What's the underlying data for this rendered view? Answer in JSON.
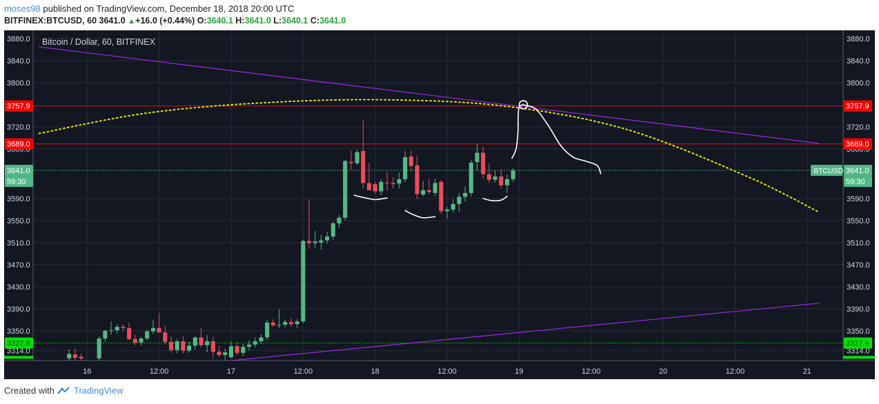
{
  "header": {
    "username": "moses98",
    "published_text": "published on TradingView.com, December 18, 2018 20:00 UTC"
  },
  "ticker": {
    "symbol": "BITFINEX:BTCUSD, 60",
    "price": "3641.0",
    "change": "+16.0 (+0.44%)",
    "open_label": "O:",
    "open": "3640.1",
    "high_label": "H:",
    "high": "3641.0",
    "low_label": "L:",
    "low": "3640.1",
    "close_label": "C:",
    "close": "3641.0",
    "change_icon": "triangle-up-icon"
  },
  "footer": {
    "created_with": "Created with",
    "brand": "TradingView",
    "logo_icon": "tradingview-logo-icon"
  },
  "colors": {
    "background": "#131722",
    "grid": "#2a2e39",
    "up": "#53b987",
    "down": "#eb4d5c",
    "resistance": "#ff0000",
    "support": "#00e400",
    "trendline": "#9c27e0",
    "arc": "#e6e600",
    "drawing": "#ffffff",
    "last_price": "#53b987"
  },
  "chart_data": {
    "type": "candlestick",
    "title": "Bitcoin / Dollar, 60, BITFINEX",
    "symbol_tag": "BTCUSD",
    "y_range": [
      3296,
      3895
    ],
    "y_ticks": [
      "3880.0",
      "3840.0",
      "3800.0",
      "3720.0",
      "3680.0",
      "3590.0",
      "3550.0",
      "3510.0",
      "3470.0",
      "3430.0",
      "3390.0",
      "3350.0",
      "3314.0"
    ],
    "y_tick_values": [
      3880,
      3840,
      3800,
      3720,
      3680,
      3590,
      3550,
      3510,
      3470,
      3430,
      3390,
      3350,
      3314
    ],
    "x_range_hours": [
      -9,
      126
    ],
    "x_ticks": [
      {
        "label": "16",
        "hour": 0
      },
      {
        "label": "12:00",
        "hour": 12
      },
      {
        "label": "17",
        "hour": 24
      },
      {
        "label": "12:00",
        "hour": 36
      },
      {
        "label": "18",
        "hour": 48
      },
      {
        "label": "12:00",
        "hour": 60
      },
      {
        "label": "19",
        "hour": 72
      },
      {
        "label": "12:00",
        "hour": 84
      },
      {
        "label": "20",
        "hour": 96
      },
      {
        "label": "12:00",
        "hour": 108
      },
      {
        "label": "21",
        "hour": 120
      }
    ],
    "price_labels": [
      {
        "text": "3757.9",
        "value": 3757.9,
        "kind": "resistance"
      },
      {
        "text": "3689.0",
        "value": 3689.0,
        "kind": "resistance"
      },
      {
        "text": "3641.0",
        "value": 3641.0,
        "kind": "last"
      },
      {
        "text": "59:30",
        "value": 3621.0,
        "kind": "countdown"
      },
      {
        "text": "3327.9",
        "value": 3327.9,
        "kind": "support"
      }
    ],
    "horizontal_lines": [
      {
        "value": 3757.9,
        "kind": "resistance"
      },
      {
        "value": 3689.0,
        "kind": "resistance"
      },
      {
        "value": 3641.0,
        "kind": "last"
      },
      {
        "value": 3327.9,
        "kind": "support"
      },
      {
        "value": 3302.0,
        "kind": "support_edge"
      }
    ],
    "trendlines": [
      {
        "from": {
          "hour": -8,
          "price": 3865
        },
        "to": {
          "hour": 122,
          "price": 3690
        }
      },
      {
        "from": {
          "hour": 24,
          "price": 3296
        },
        "to": {
          "hour": 122,
          "price": 3400
        }
      }
    ],
    "arc": {
      "points": [
        {
          "hour": -8,
          "price": 3708
        },
        {
          "hour": 10,
          "price": 3745
        },
        {
          "hour": 30,
          "price": 3764
        },
        {
          "hour": 50,
          "price": 3769
        },
        {
          "hour": 70,
          "price": 3757
        },
        {
          "hour": 90,
          "price": 3715
        },
        {
          "hour": 110,
          "price": 3630
        },
        {
          "hour": 122,
          "price": 3565
        }
      ]
    },
    "candles": [
      {
        "hour": -3,
        "open": 3300,
        "high": 3316,
        "low": 3296,
        "close": 3308
      },
      {
        "hour": -2,
        "open": 3307,
        "high": 3318,
        "low": 3296,
        "close": 3301
      },
      {
        "hour": -1,
        "open": 3303,
        "high": 3309,
        "low": 3296,
        "close": 3300
      },
      {
        "hour": 2,
        "open": 3300,
        "high": 3340,
        "low": 3296,
        "close": 3336
      },
      {
        "hour": 3,
        "open": 3336,
        "high": 3352,
        "low": 3330,
        "close": 3350
      },
      {
        "hour": 4,
        "open": 3350,
        "high": 3367,
        "low": 3343,
        "close": 3351
      },
      {
        "hour": 5,
        "open": 3351,
        "high": 3362,
        "low": 3345,
        "close": 3357
      },
      {
        "hour": 6,
        "open": 3357,
        "high": 3362,
        "low": 3349,
        "close": 3355
      },
      {
        "hour": 7,
        "open": 3355,
        "high": 3365,
        "low": 3333,
        "close": 3335
      },
      {
        "hour": 8,
        "open": 3335,
        "high": 3343,
        "low": 3324,
        "close": 3328
      },
      {
        "hour": 9,
        "open": 3329,
        "high": 3339,
        "low": 3323,
        "close": 3336
      },
      {
        "hour": 10,
        "open": 3336,
        "high": 3352,
        "low": 3333,
        "close": 3349
      },
      {
        "hour": 11,
        "open": 3349,
        "high": 3369,
        "low": 3344,
        "close": 3355
      },
      {
        "hour": 12,
        "open": 3355,
        "high": 3382,
        "low": 3349,
        "close": 3347
      },
      {
        "hour": 13,
        "open": 3347,
        "high": 3359,
        "low": 3325,
        "close": 3330
      },
      {
        "hour": 14,
        "open": 3330,
        "high": 3340,
        "low": 3310,
        "close": 3315
      },
      {
        "hour": 15,
        "open": 3315,
        "high": 3336,
        "low": 3309,
        "close": 3331
      },
      {
        "hour": 16,
        "open": 3331,
        "high": 3340,
        "low": 3309,
        "close": 3314
      },
      {
        "hour": 17,
        "open": 3314,
        "high": 3330,
        "low": 3310,
        "close": 3323
      },
      {
        "hour": 18,
        "open": 3323,
        "high": 3340,
        "low": 3316,
        "close": 3338
      },
      {
        "hour": 19,
        "open": 3338,
        "high": 3356,
        "low": 3320,
        "close": 3324
      },
      {
        "hour": 20,
        "open": 3324,
        "high": 3342,
        "low": 3311,
        "close": 3331
      },
      {
        "hour": 21,
        "open": 3331,
        "high": 3339,
        "low": 3300,
        "close": 3312
      },
      {
        "hour": 22,
        "open": 3312,
        "high": 3323,
        "low": 3302,
        "close": 3306
      },
      {
        "hour": 23,
        "open": 3306,
        "high": 3318,
        "low": 3296,
        "close": 3311
      },
      {
        "hour": 24,
        "open": 3302,
        "high": 3330,
        "low": 3300,
        "close": 3322
      },
      {
        "hour": 25,
        "open": 3322,
        "high": 3329,
        "low": 3306,
        "close": 3310
      },
      {
        "hour": 26,
        "open": 3310,
        "high": 3326,
        "low": 3304,
        "close": 3321
      },
      {
        "hour": 27,
        "open": 3321,
        "high": 3333,
        "low": 3314,
        "close": 3325
      },
      {
        "hour": 28,
        "open": 3325,
        "high": 3338,
        "low": 3320,
        "close": 3331
      },
      {
        "hour": 29,
        "open": 3331,
        "high": 3344,
        "low": 3326,
        "close": 3338
      },
      {
        "hour": 30,
        "open": 3338,
        "high": 3370,
        "low": 3333,
        "close": 3365
      },
      {
        "hour": 31,
        "open": 3365,
        "high": 3371,
        "low": 3357,
        "close": 3360
      },
      {
        "hour": 32,
        "open": 3360,
        "high": 3389,
        "low": 3355,
        "close": 3361
      },
      {
        "hour": 33,
        "open": 3361,
        "high": 3370,
        "low": 3356,
        "close": 3366
      },
      {
        "hour": 34,
        "open": 3366,
        "high": 3373,
        "low": 3357,
        "close": 3362
      },
      {
        "hour": 35,
        "open": 3362,
        "high": 3371,
        "low": 3355,
        "close": 3367
      },
      {
        "hour": 36,
        "open": 3367,
        "high": 3515,
        "low": 3364,
        "close": 3513
      },
      {
        "hour": 37,
        "open": 3513,
        "high": 3588,
        "low": 3499,
        "close": 3509
      },
      {
        "hour": 38,
        "open": 3509,
        "high": 3531,
        "low": 3500,
        "close": 3512
      },
      {
        "hour": 39,
        "open": 3510,
        "high": 3524,
        "low": 3497,
        "close": 3514
      },
      {
        "hour": 40,
        "open": 3514,
        "high": 3530,
        "low": 3508,
        "close": 3521
      },
      {
        "hour": 41,
        "open": 3521,
        "high": 3548,
        "low": 3515,
        "close": 3545
      },
      {
        "hour": 42,
        "open": 3545,
        "high": 3560,
        "low": 3537,
        "close": 3555
      },
      {
        "hour": 43,
        "open": 3555,
        "high": 3660,
        "low": 3550,
        "close": 3658
      },
      {
        "hour": 44,
        "open": 3656,
        "high": 3677,
        "low": 3641,
        "close": 3654
      },
      {
        "hour": 45,
        "open": 3654,
        "high": 3678,
        "low": 3650,
        "close": 3674
      },
      {
        "hour": 46,
        "open": 3676,
        "high": 3733,
        "low": 3608,
        "close": 3618
      },
      {
        "hour": 47,
        "open": 3618,
        "high": 3655,
        "low": 3606,
        "close": 3605
      },
      {
        "hour": 48,
        "open": 3616,
        "high": 3620,
        "low": 3598,
        "close": 3603
      },
      {
        "hour": 49,
        "open": 3603,
        "high": 3625,
        "low": 3596,
        "close": 3620
      },
      {
        "hour": 50,
        "open": 3619,
        "high": 3638,
        "low": 3604,
        "close": 3618
      },
      {
        "hour": 51,
        "open": 3618,
        "high": 3629,
        "low": 3608,
        "close": 3616
      },
      {
        "hour": 52,
        "open": 3617,
        "high": 3637,
        "low": 3608,
        "close": 3625
      },
      {
        "hour": 53,
        "open": 3625,
        "high": 3676,
        "low": 3620,
        "close": 3665
      },
      {
        "hour": 54,
        "open": 3666,
        "high": 3677,
        "low": 3640,
        "close": 3649
      },
      {
        "hour": 55,
        "open": 3650,
        "high": 3668,
        "low": 3589,
        "close": 3598
      },
      {
        "hour": 56,
        "open": 3597,
        "high": 3622,
        "low": 3594,
        "close": 3605
      },
      {
        "hour": 57,
        "open": 3605,
        "high": 3626,
        "low": 3598,
        "close": 3602
      },
      {
        "hour": 58,
        "open": 3600,
        "high": 3626,
        "low": 3594,
        "close": 3618
      },
      {
        "hour": 59,
        "open": 3620,
        "high": 3624,
        "low": 3562,
        "close": 3567
      },
      {
        "hour": 60,
        "open": 3567,
        "high": 3575,
        "low": 3554,
        "close": 3570
      },
      {
        "hour": 61,
        "open": 3570,
        "high": 3589,
        "low": 3564,
        "close": 3580
      },
      {
        "hour": 62,
        "open": 3580,
        "high": 3600,
        "low": 3566,
        "close": 3593
      },
      {
        "hour": 63,
        "open": 3593,
        "high": 3612,
        "low": 3584,
        "close": 3600
      },
      {
        "hour": 64,
        "open": 3600,
        "high": 3660,
        "low": 3594,
        "close": 3655
      },
      {
        "hour": 65,
        "open": 3656,
        "high": 3688,
        "low": 3641,
        "close": 3673
      },
      {
        "hour": 66,
        "open": 3673,
        "high": 3684,
        "low": 3626,
        "close": 3634
      },
      {
        "hour": 67,
        "open": 3634,
        "high": 3653,
        "low": 3618,
        "close": 3624
      },
      {
        "hour": 68,
        "open": 3624,
        "high": 3641,
        "low": 3619,
        "close": 3630
      },
      {
        "hour": 69,
        "open": 3630,
        "high": 3643,
        "low": 3608,
        "close": 3614
      },
      {
        "hour": 70,
        "open": 3614,
        "high": 3633,
        "low": 3600,
        "close": 3625
      },
      {
        "hour": 71,
        "open": 3625,
        "high": 3645,
        "low": 3620,
        "close": 3641
      }
    ],
    "annotations": [
      {
        "points": [
          {
            "hour": 44.5,
            "price": 3596
          },
          {
            "hour": 46,
            "price": 3592
          },
          {
            "hour": 48,
            "price": 3588
          },
          {
            "hour": 50,
            "price": 3591
          }
        ]
      },
      {
        "points": [
          {
            "hour": 53,
            "price": 3568
          },
          {
            "hour": 54.5,
            "price": 3560
          },
          {
            "hour": 56,
            "price": 3555
          },
          {
            "hour": 58,
            "price": 3557
          }
        ]
      },
      {
        "points": [
          {
            "hour": 66,
            "price": 3590
          },
          {
            "hour": 67.5,
            "price": 3586
          },
          {
            "hour": 69,
            "price": 3587
          },
          {
            "hour": 70,
            "price": 3594
          }
        ]
      },
      {
        "points": [
          {
            "hour": 70.8,
            "price": 3663
          },
          {
            "hour": 71.5,
            "price": 3680
          },
          {
            "hour": 71.8,
            "price": 3710
          },
          {
            "hour": 72,
            "price": 3755
          },
          {
            "hour": 73.5,
            "price": 3758
          },
          {
            "hour": 75,
            "price": 3750
          },
          {
            "hour": 77,
            "price": 3720
          },
          {
            "hour": 79,
            "price": 3685
          },
          {
            "hour": 81,
            "price": 3665
          },
          {
            "hour": 83,
            "price": 3658
          },
          {
            "hour": 85,
            "price": 3650
          },
          {
            "hour": 85.6,
            "price": 3635
          }
        ]
      },
      {
        "circle": {
          "hour": 72.7,
          "price": 3760
        }
      }
    ]
  }
}
